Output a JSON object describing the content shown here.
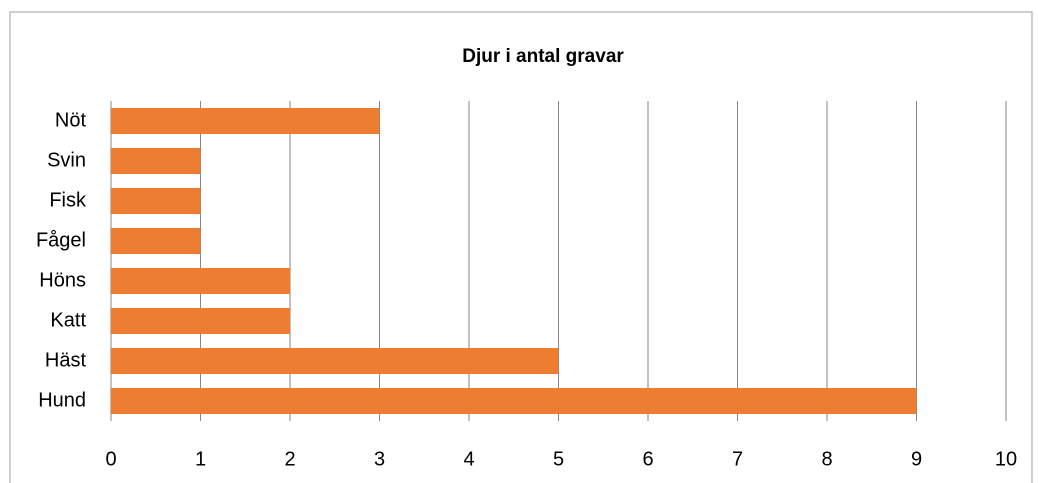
{
  "chart_data": {
    "type": "bar",
    "orientation": "horizontal",
    "title": "Djur i antal gravar",
    "categories": [
      "Nöt",
      "Svin",
      "Fisk",
      "Fågel",
      "Höns",
      "Katt",
      "Häst",
      "Hund"
    ],
    "values": [
      3,
      1,
      1,
      1,
      2,
      2,
      5,
      9
    ],
    "color": "#ed7d31",
    "xlim": [
      0,
      10
    ],
    "xticks": [
      0,
      1,
      2,
      3,
      4,
      5,
      6,
      7,
      8,
      9,
      10
    ],
    "grid": true
  }
}
